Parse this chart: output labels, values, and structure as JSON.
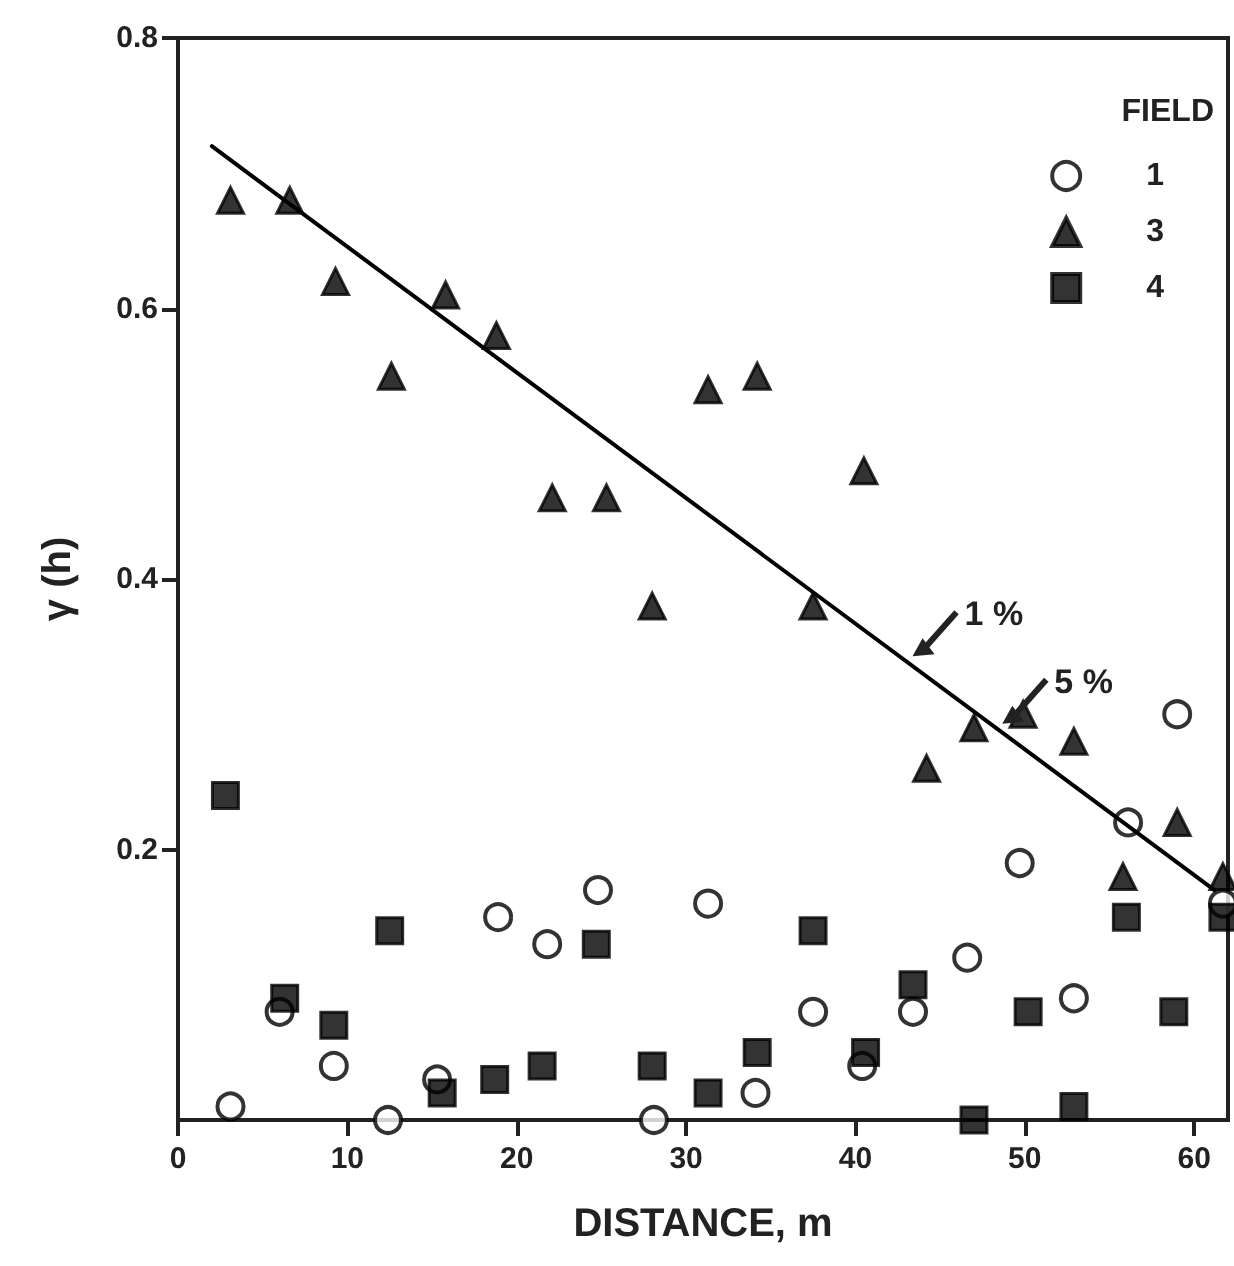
{
  "chart_data": {
    "type": "scatter",
    "xlabel": "DISTANCE, m",
    "ylabel": "γ (h)",
    "legend_title": "FIELD",
    "xlim": [
      0,
      62
    ],
    "xticks": [
      0,
      10,
      20,
      30,
      40,
      50,
      60
    ],
    "ylim": [
      0,
      0.8
    ],
    "yticks": [
      0.2,
      0.4,
      0.6,
      0.8
    ],
    "grid": false,
    "legend": "top right",
    "annotations": [
      {
        "text": "1 %",
        "x": 42.9,
        "y": 0.34
      },
      {
        "text": "5 %",
        "x": 48.2,
        "y": 0.29
      }
    ],
    "series": [
      {
        "name": "1",
        "color": "#000000",
        "marker": "circle",
        "x": [
          3.1,
          6.0,
          9.2,
          12.4,
          15.3,
          18.9,
          21.8,
          24.8,
          28.1,
          31.3,
          34.1,
          37.5,
          40.4,
          43.4,
          46.6,
          49.7,
          52.9,
          56.1,
          59.0,
          61.7
        ],
        "values": [
          0.01,
          0.08,
          0.04,
          0.0,
          0.03,
          0.15,
          0.13,
          0.17,
          0.0,
          0.16,
          0.02,
          0.08,
          0.04,
          0.08,
          0.12,
          0.19,
          0.09,
          0.22,
          0.3,
          0.16
        ]
      },
      {
        "name": "3",
        "color": "#000000",
        "marker": "triangle",
        "x": [
          3.1,
          6.6,
          9.3,
          12.6,
          15.8,
          18.8,
          22.1,
          25.3,
          28.0,
          31.3,
          34.2,
          37.5,
          40.5,
          44.2,
          47.0,
          49.9,
          52.9,
          55.8,
          59.0,
          61.7
        ],
        "values": [
          0.68,
          0.68,
          0.62,
          0.55,
          0.61,
          0.58,
          0.46,
          0.46,
          0.38,
          0.54,
          0.55,
          0.38,
          0.48,
          0.26,
          0.29,
          0.3,
          0.28,
          0.18,
          0.22,
          0.18
        ]
      },
      {
        "name": "4",
        "color": "#000000",
        "marker": "square",
        "x": [
          2.8,
          6.3,
          9.2,
          12.5,
          15.6,
          18.7,
          21.5,
          24.7,
          28.0,
          31.3,
          34.2,
          37.5,
          40.6,
          43.4,
          47.0,
          50.2,
          52.9,
          56.0,
          58.8,
          61.7
        ],
        "values": [
          0.24,
          0.09,
          0.07,
          0.14,
          0.02,
          0.03,
          0.04,
          0.13,
          0.04,
          0.02,
          0.05,
          0.14,
          0.05,
          0.1,
          0.0,
          0.08,
          0.01,
          0.15,
          0.08,
          0.15
        ]
      },
      {
        "type": "line",
        "color": "#000000",
        "marker": "none",
        "line_style": "solid",
        "x": [
          2.0,
          61.2
        ],
        "values": [
          0.72,
          0.17
        ]
      }
    ]
  }
}
